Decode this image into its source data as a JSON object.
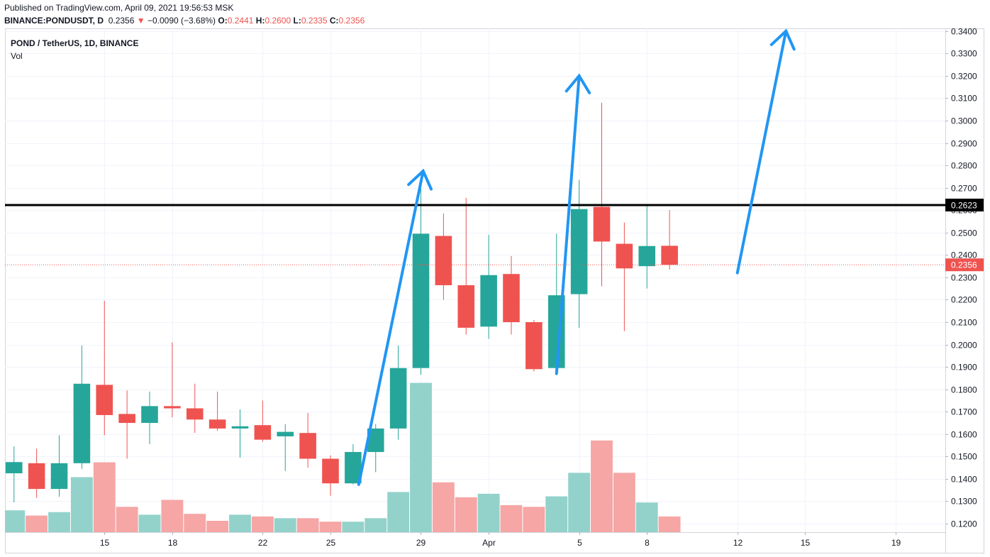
{
  "header": {
    "published": "Published on TradingView.com, April 09, 2021 19:56:53 MSK",
    "symbol_line": "BINANCE:PONDUSDT, D",
    "last": "0.2356",
    "change": "−0.0090 (−3.68%)",
    "o_label": "O:",
    "o_value": "0.2441",
    "h_label": "H:",
    "h_value": "0.2600",
    "l_label": "L:",
    "l_value": "0.2335",
    "c_label": "C:",
    "c_value": "0.2356"
  },
  "legend": {
    "symbol": "POND / TetherUS, 1D, BINANCE",
    "volume_label": "Vol"
  },
  "colors": {
    "up": "#26a69a",
    "down": "#ef5350",
    "up_volume": "#93d2cb",
    "down_volume": "#f5a6a5",
    "arrow": "#2196f3",
    "level_line": "#000000",
    "grid": "#f0f3fa",
    "price_label": "#ef5350"
  },
  "chart_data": {
    "type": "candlestick",
    "y_axis": {
      "ticks": [
        "0.3400",
        "0.3300",
        "0.3200",
        "0.3100",
        "0.3000",
        "0.2900",
        "0.2800",
        "0.2700",
        "0.2600",
        "0.2500",
        "0.2400",
        "0.2300",
        "0.2200",
        "0.2100",
        "0.2000",
        "0.1900",
        "0.1800",
        "0.1700",
        "0.1600",
        "0.1500",
        "0.1400",
        "0.1300",
        "0.1200"
      ],
      "ylim": [
        0.1162,
        0.3412
      ]
    },
    "x_axis": {
      "ticks": [
        {
          "day": 15,
          "label": "15"
        },
        {
          "day": 18,
          "label": "18"
        },
        {
          "day": 22,
          "label": "22"
        },
        {
          "day": 25,
          "label": "25"
        },
        {
          "day": 29,
          "label": "29"
        },
        {
          "day": 32,
          "label": "Apr"
        },
        {
          "day": 36,
          "label": "5"
        },
        {
          "day": 39,
          "label": "8"
        },
        {
          "day": 43,
          "label": "12"
        },
        {
          "day": 46,
          "label": "15"
        },
        {
          "day": 50,
          "label": "19"
        }
      ],
      "xlim": [
        10.6,
        52.2
      ]
    },
    "candles": [
      {
        "day": 11,
        "o": 0.1425,
        "h": 0.1545,
        "l": 0.1295,
        "c": 0.1475,
        "v": 0.25
      },
      {
        "day": 12,
        "o": 0.147,
        "h": 0.1535,
        "l": 0.1315,
        "c": 0.1355,
        "v": 0.19
      },
      {
        "day": 13,
        "o": 0.1355,
        "h": 0.1595,
        "l": 0.132,
        "c": 0.147,
        "v": 0.23
      },
      {
        "day": 14,
        "o": 0.147,
        "h": 0.1995,
        "l": 0.1445,
        "c": 0.1825,
        "v": 0.63
      },
      {
        "day": 15,
        "o": 0.182,
        "h": 0.2195,
        "l": 0.1595,
        "c": 0.1685,
        "v": 0.8
      },
      {
        "day": 16,
        "o": 0.169,
        "h": 0.1795,
        "l": 0.149,
        "c": 0.165,
        "v": 0.29
      },
      {
        "day": 17,
        "o": 0.165,
        "h": 0.179,
        "l": 0.1555,
        "c": 0.1725,
        "v": 0.2
      },
      {
        "day": 18,
        "o": 0.1725,
        "h": 0.201,
        "l": 0.1675,
        "c": 0.1715,
        "v": 0.37
      },
      {
        "day": 19,
        "o": 0.1715,
        "h": 0.1825,
        "l": 0.1605,
        "c": 0.1665,
        "v": 0.21
      },
      {
        "day": 20,
        "o": 0.1665,
        "h": 0.179,
        "l": 0.1615,
        "c": 0.1625,
        "v": 0.13
      },
      {
        "day": 21,
        "o": 0.1625,
        "h": 0.171,
        "l": 0.1495,
        "c": 0.1635,
        "v": 0.2
      },
      {
        "day": 22,
        "o": 0.164,
        "h": 0.175,
        "l": 0.1565,
        "c": 0.1575,
        "v": 0.18
      },
      {
        "day": 23,
        "o": 0.159,
        "h": 0.1645,
        "l": 0.1435,
        "c": 0.161,
        "v": 0.16
      },
      {
        "day": 24,
        "o": 0.1605,
        "h": 0.1695,
        "l": 0.145,
        "c": 0.149,
        "v": 0.16
      },
      {
        "day": 25,
        "o": 0.149,
        "h": 0.1505,
        "l": 0.1325,
        "c": 0.138,
        "v": 0.12
      },
      {
        "day": 26,
        "o": 0.138,
        "h": 0.1555,
        "l": 0.1375,
        "c": 0.152,
        "v": 0.12
      },
      {
        "day": 27,
        "o": 0.152,
        "h": 0.1645,
        "l": 0.143,
        "c": 0.1625,
        "v": 0.16
      },
      {
        "day": 28,
        "o": 0.1625,
        "h": 0.1995,
        "l": 0.1575,
        "c": 0.1895,
        "v": 0.46
      },
      {
        "day": 29,
        "o": 0.1895,
        "h": 0.2705,
        "l": 0.1865,
        "c": 0.2495,
        "v": 1.71
      },
      {
        "day": 30,
        "o": 0.2485,
        "h": 0.2585,
        "l": 0.22,
        "c": 0.2265,
        "v": 0.57
      },
      {
        "day": 31,
        "o": 0.2265,
        "h": 0.2655,
        "l": 0.2045,
        "c": 0.2075,
        "v": 0.4
      },
      {
        "day": 32,
        "o": 0.208,
        "h": 0.249,
        "l": 0.2025,
        "c": 0.231,
        "v": 0.44
      },
      {
        "day": 33,
        "o": 0.2315,
        "h": 0.2395,
        "l": 0.2045,
        "c": 0.21,
        "v": 0.31
      },
      {
        "day": 34,
        "o": 0.21,
        "h": 0.211,
        "l": 0.188,
        "c": 0.189,
        "v": 0.29
      },
      {
        "day": 35,
        "o": 0.1895,
        "h": 0.2495,
        "l": 0.1885,
        "c": 0.222,
        "v": 0.41
      },
      {
        "day": 36,
        "o": 0.2225,
        "h": 0.2735,
        "l": 0.2075,
        "c": 0.2605,
        "v": 0.68
      },
      {
        "day": 37,
        "o": 0.2615,
        "h": 0.308,
        "l": 0.226,
        "c": 0.246,
        "v": 1.05
      },
      {
        "day": 38,
        "o": 0.245,
        "h": 0.2545,
        "l": 0.206,
        "c": 0.234,
        "v": 0.68
      },
      {
        "day": 39,
        "o": 0.235,
        "h": 0.262,
        "l": 0.225,
        "c": 0.244,
        "v": 0.34
      },
      {
        "day": 40,
        "o": 0.2441,
        "h": 0.26,
        "l": 0.2335,
        "c": 0.2356,
        "v": 0.18
      }
    ],
    "volume_scale_max": 2.3,
    "horizontal_line": {
      "value": 0.2623,
      "label": "0.2623"
    },
    "last_price": {
      "value": 0.2356,
      "label": "0.2356"
    },
    "arrows": [
      {
        "from": [
          26.25,
          0.1375
        ],
        "to": [
          29.1,
          0.2775
        ]
      },
      {
        "from": [
          35.0,
          0.187
        ],
        "to": [
          36.0,
          0.32
        ]
      },
      {
        "from": [
          43.0,
          0.232
        ],
        "to": [
          45.15,
          0.34
        ]
      }
    ]
  }
}
